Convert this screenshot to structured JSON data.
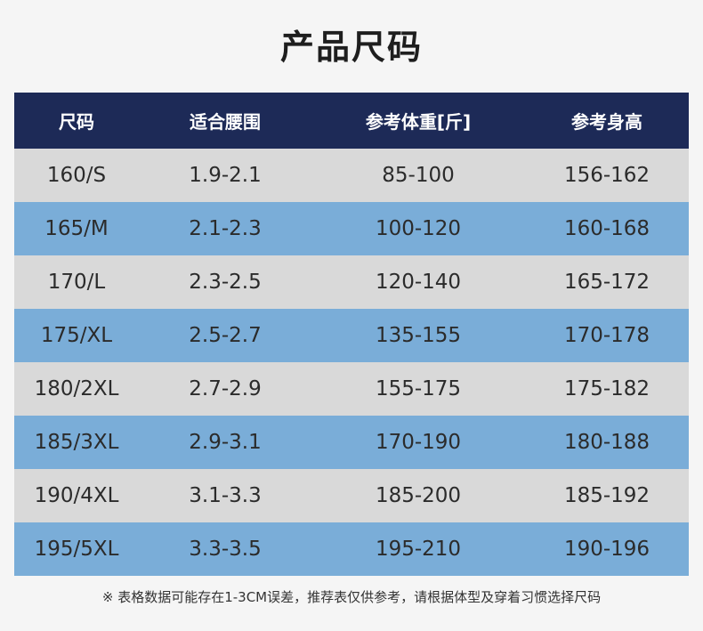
{
  "title": "产品尺码",
  "table": {
    "headers": [
      "尺码",
      "适合腰围",
      "参考体重[斤]",
      "参考身高"
    ],
    "rows": [
      [
        "160/S",
        "1.9-2.1",
        "85-100",
        "156-162"
      ],
      [
        "165/M",
        "2.1-2.3",
        "100-120",
        "160-168"
      ],
      [
        "170/L",
        "2.3-2.5",
        "120-140",
        "165-172"
      ],
      [
        "175/XL",
        "2.5-2.7",
        "135-155",
        "170-178"
      ],
      [
        "180/2XL",
        "2.7-2.9",
        "155-175",
        "175-182"
      ],
      [
        "185/3XL",
        "2.9-3.1",
        "170-190",
        "180-188"
      ],
      [
        "190/4XL",
        "3.1-3.3",
        "185-200",
        "185-192"
      ],
      [
        "195/5XL",
        "3.3-3.5",
        "195-210",
        "190-196"
      ]
    ]
  },
  "note": "※ 表格数据可能存在1-3CM误差，推荐表仅供参考，请根据体型及穿着习惯选择尺码",
  "colors": {
    "header_bg": "#1d2a57",
    "row_light": "#d9d9d9",
    "row_blue": "#7aadd8"
  }
}
